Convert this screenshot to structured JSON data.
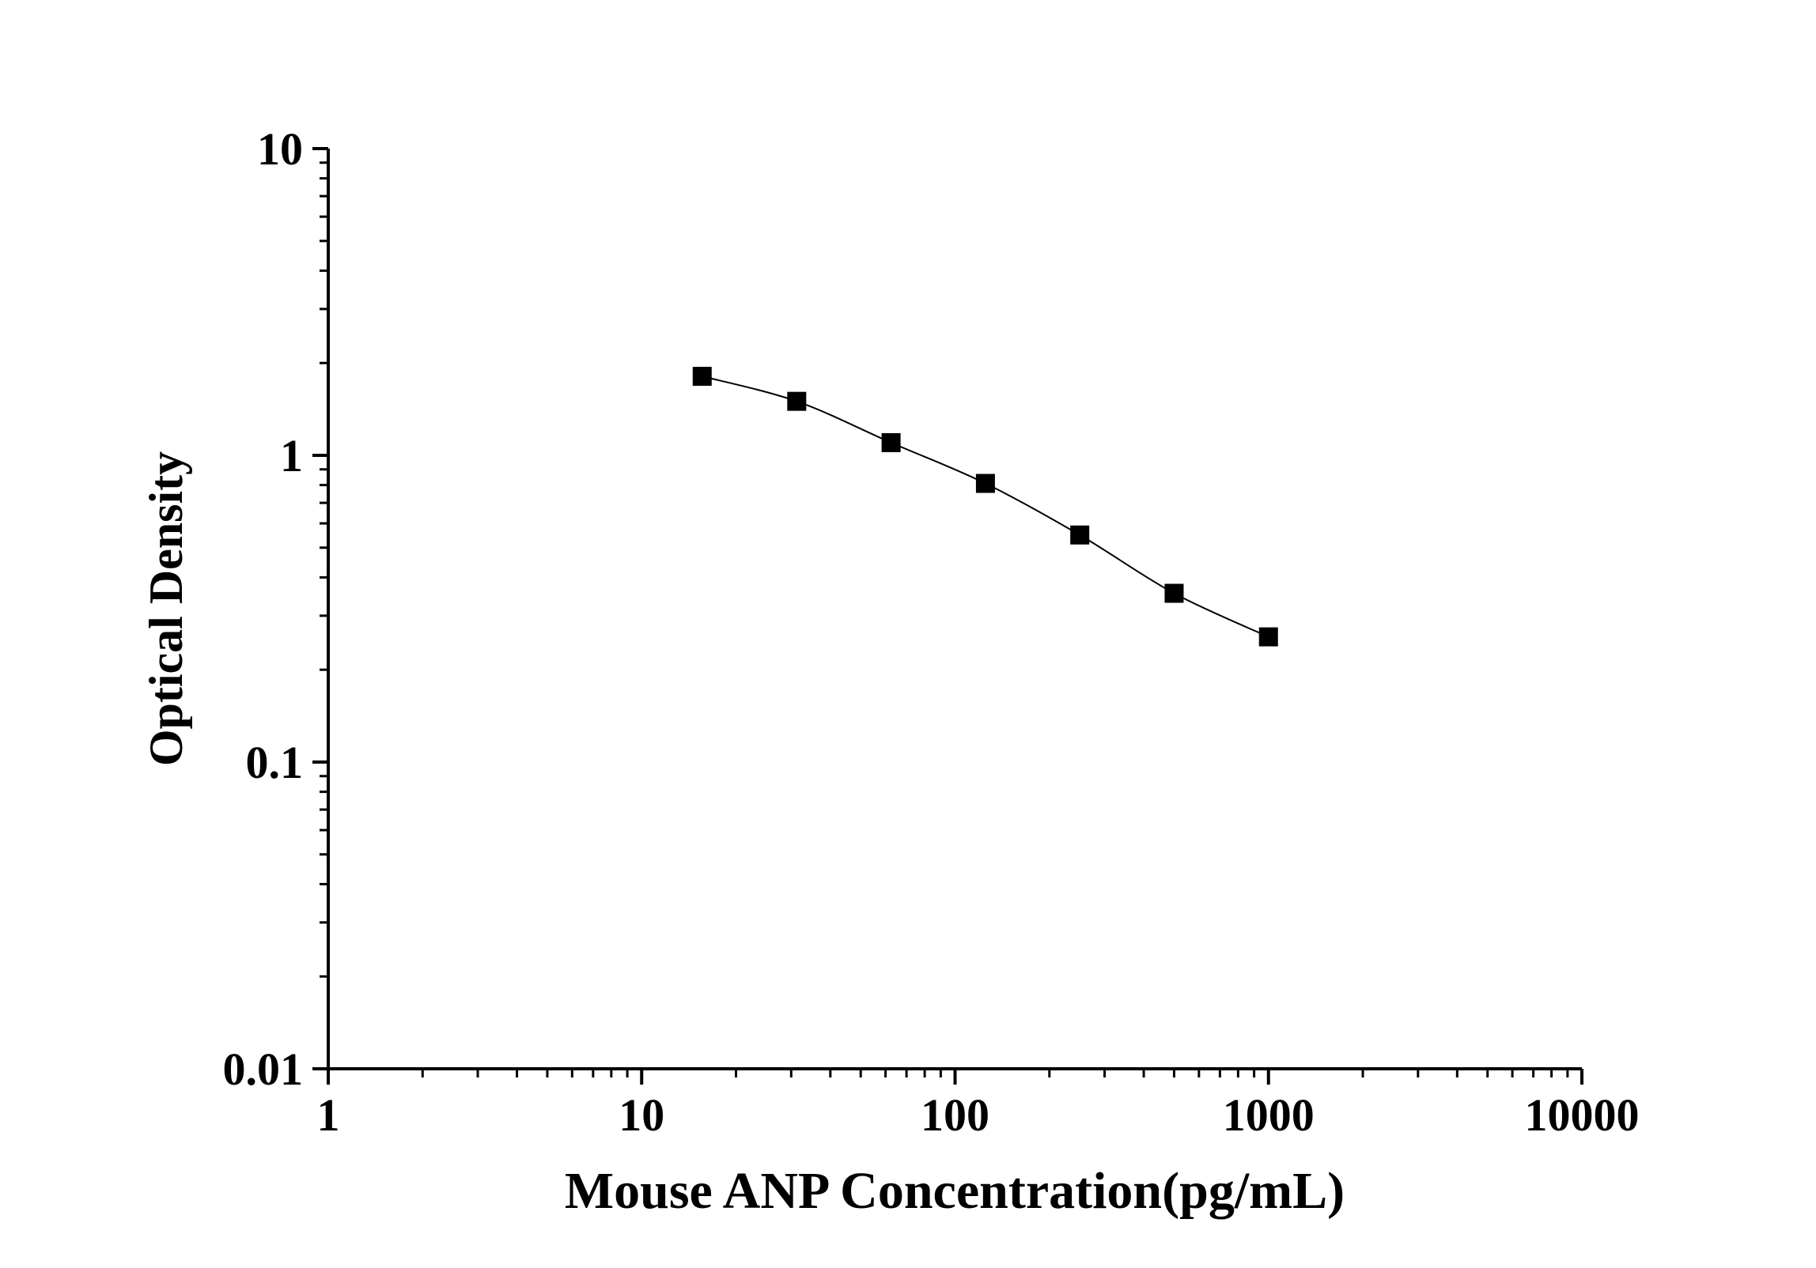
{
  "chart_data": {
    "type": "scatter",
    "title": "",
    "xlabel": "Mouse ANP Concentration(pg/mL)",
    "ylabel": "Optical Density",
    "xscale": "log",
    "yscale": "log",
    "xlim": [
      1,
      10000
    ],
    "ylim": [
      0.01,
      10
    ],
    "xticks": [
      "1",
      "10",
      "100",
      "1000",
      "10000"
    ],
    "yticks": [
      "0.01",
      "0.1",
      "1",
      "10"
    ],
    "grid": false,
    "legend": "none",
    "marker": "square",
    "line": "smooth connecting curve",
    "color": "#000000",
    "x": [
      15.6,
      31.25,
      62.5,
      125,
      250,
      500,
      1000
    ],
    "y": [
      1.81,
      1.5,
      1.1,
      0.81,
      0.55,
      0.355,
      0.256
    ]
  }
}
